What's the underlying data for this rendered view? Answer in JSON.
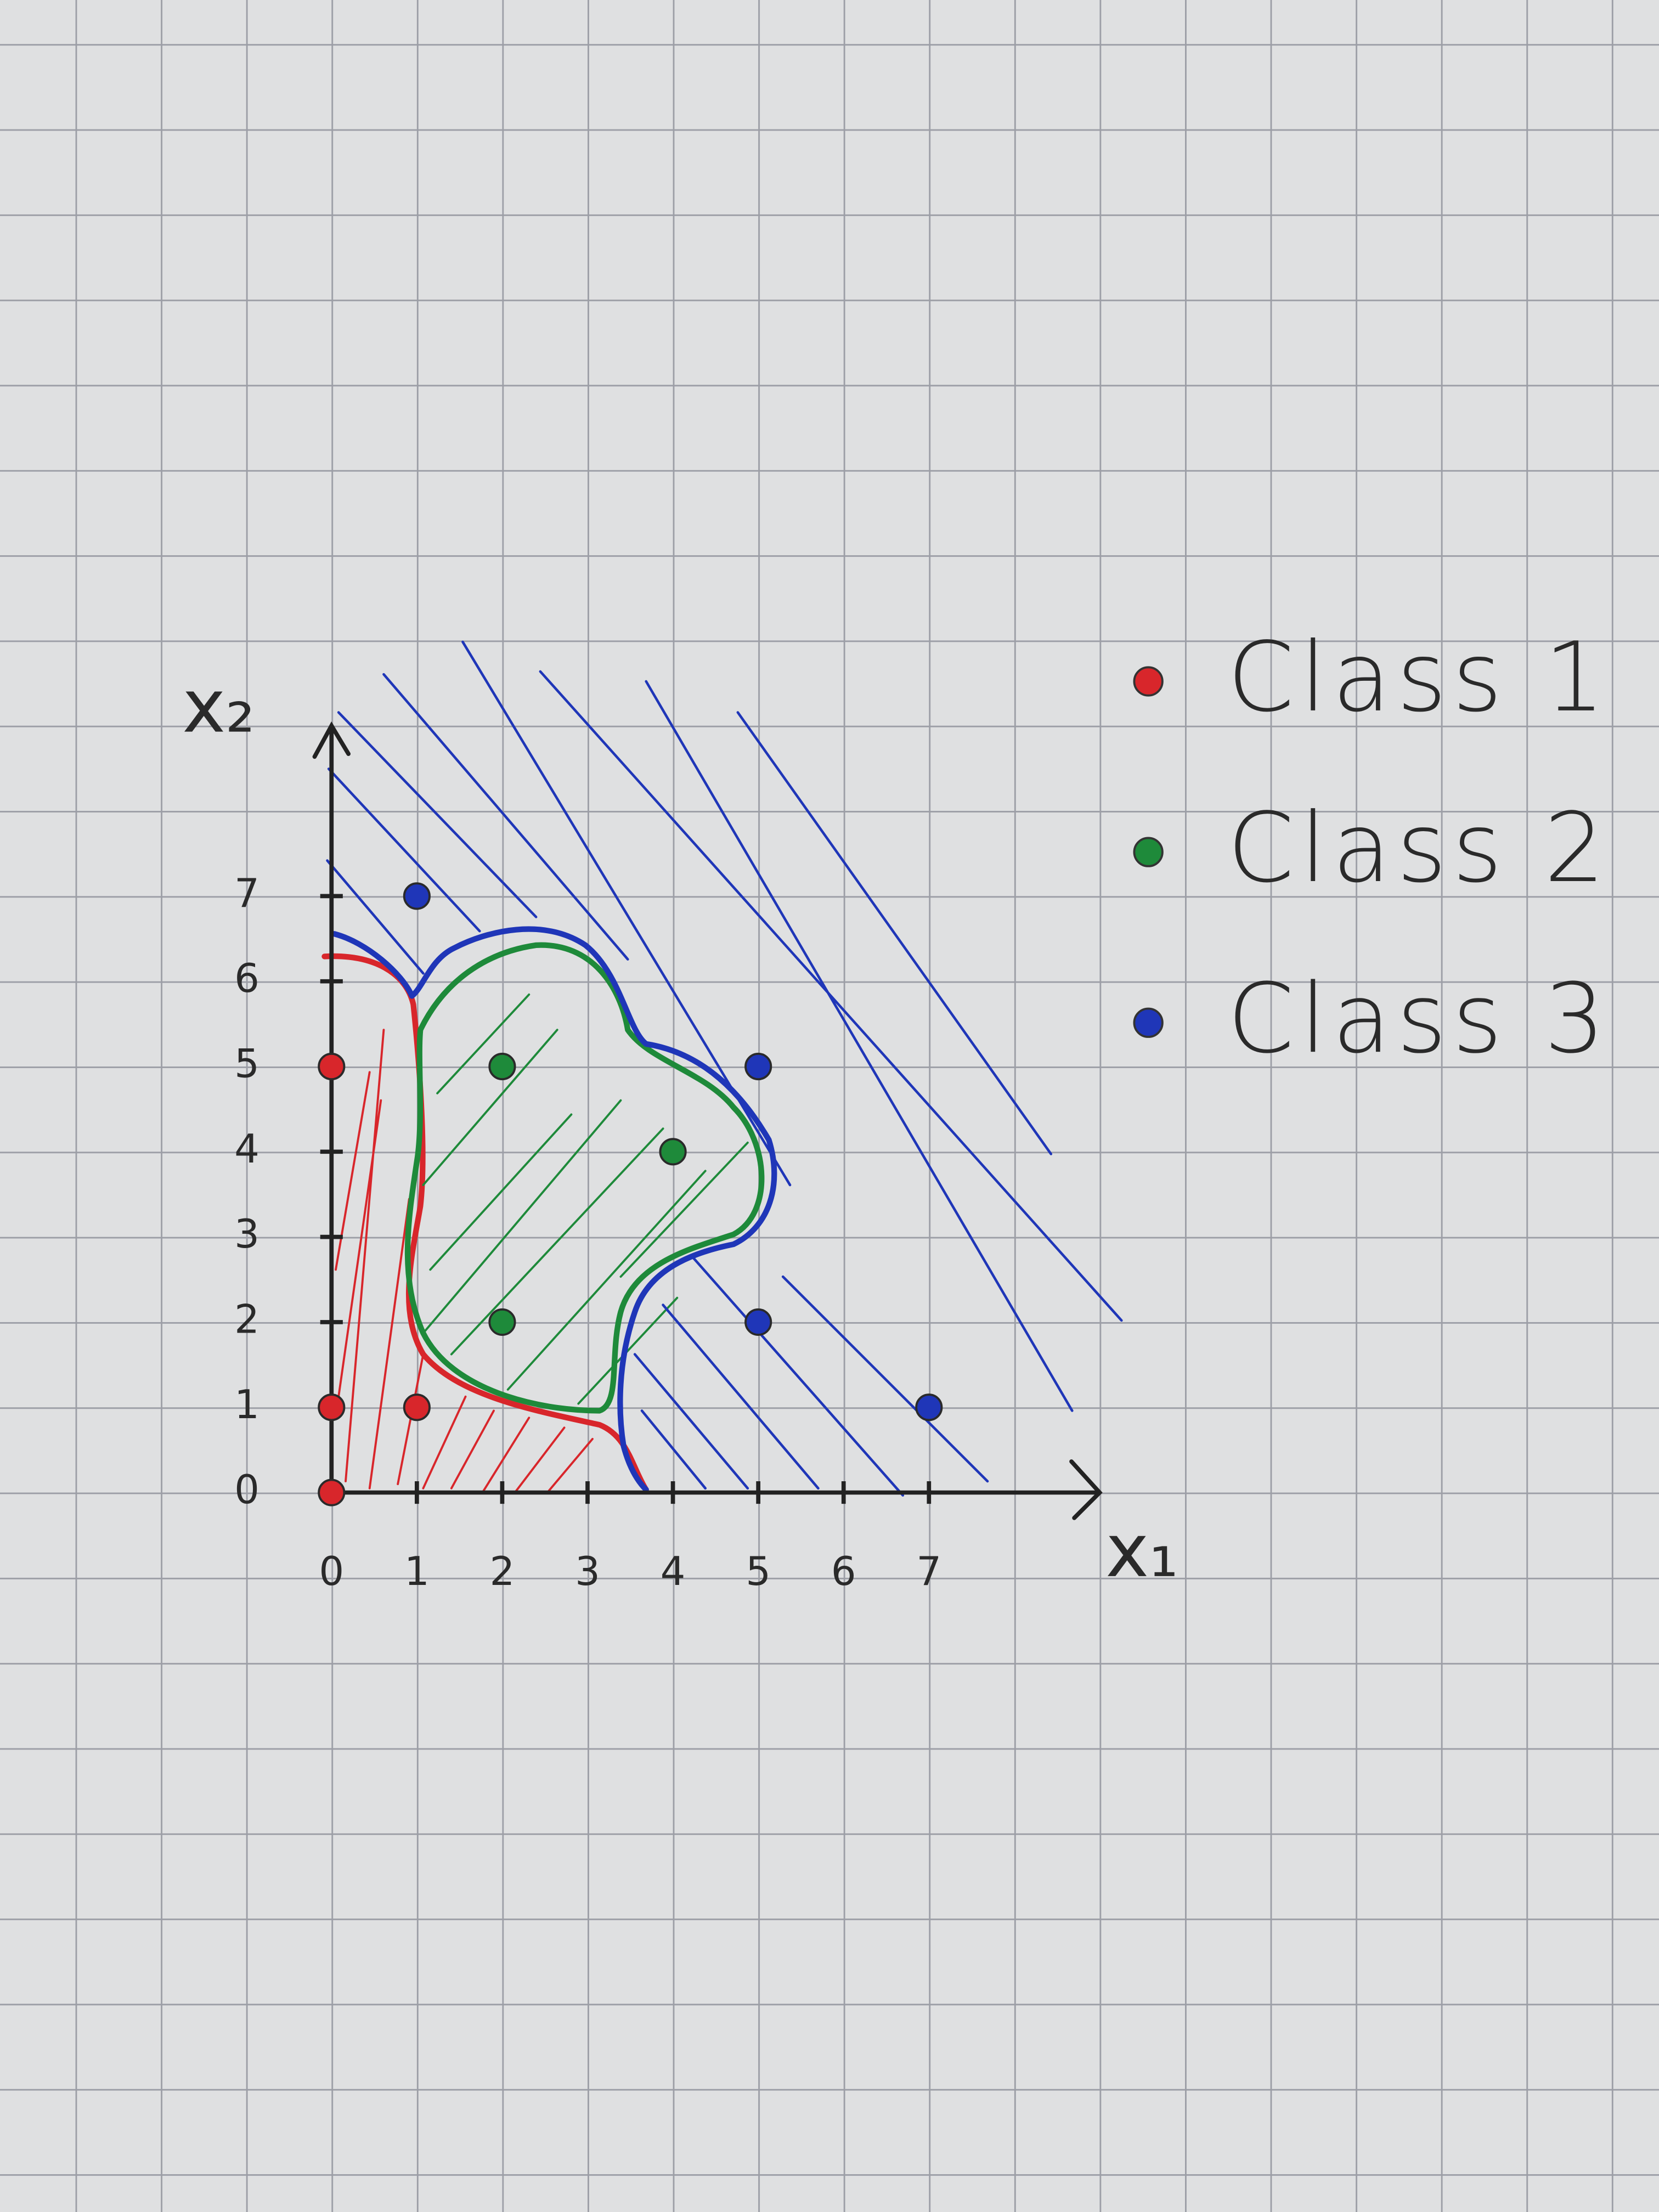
{
  "chart_data": {
    "type": "scatter",
    "x_label": "x₁",
    "y_label": "x₂",
    "xlim": [
      0,
      9
    ],
    "ylim": [
      0,
      9
    ],
    "xticks": [
      0,
      1,
      2,
      3,
      4,
      5,
      6,
      7
    ],
    "yticks": [
      0,
      1,
      2,
      3,
      4,
      5,
      6,
      7
    ],
    "series": [
      {
        "name": "Class 1",
        "color": "#d8262b",
        "x": [
          0,
          0,
          1,
          0
        ],
        "values": [
          0,
          1,
          1,
          5
        ]
      },
      {
        "name": "Class 2",
        "color": "#1e8a3a",
        "x": [
          2,
          4,
          2
        ],
        "values": [
          5,
          4,
          2
        ]
      },
      {
        "name": "Class 3",
        "color": "#1f36b8",
        "x": [
          1,
          5,
          5,
          7
        ],
        "values": [
          7,
          5,
          2,
          1
        ]
      }
    ]
  }
}
